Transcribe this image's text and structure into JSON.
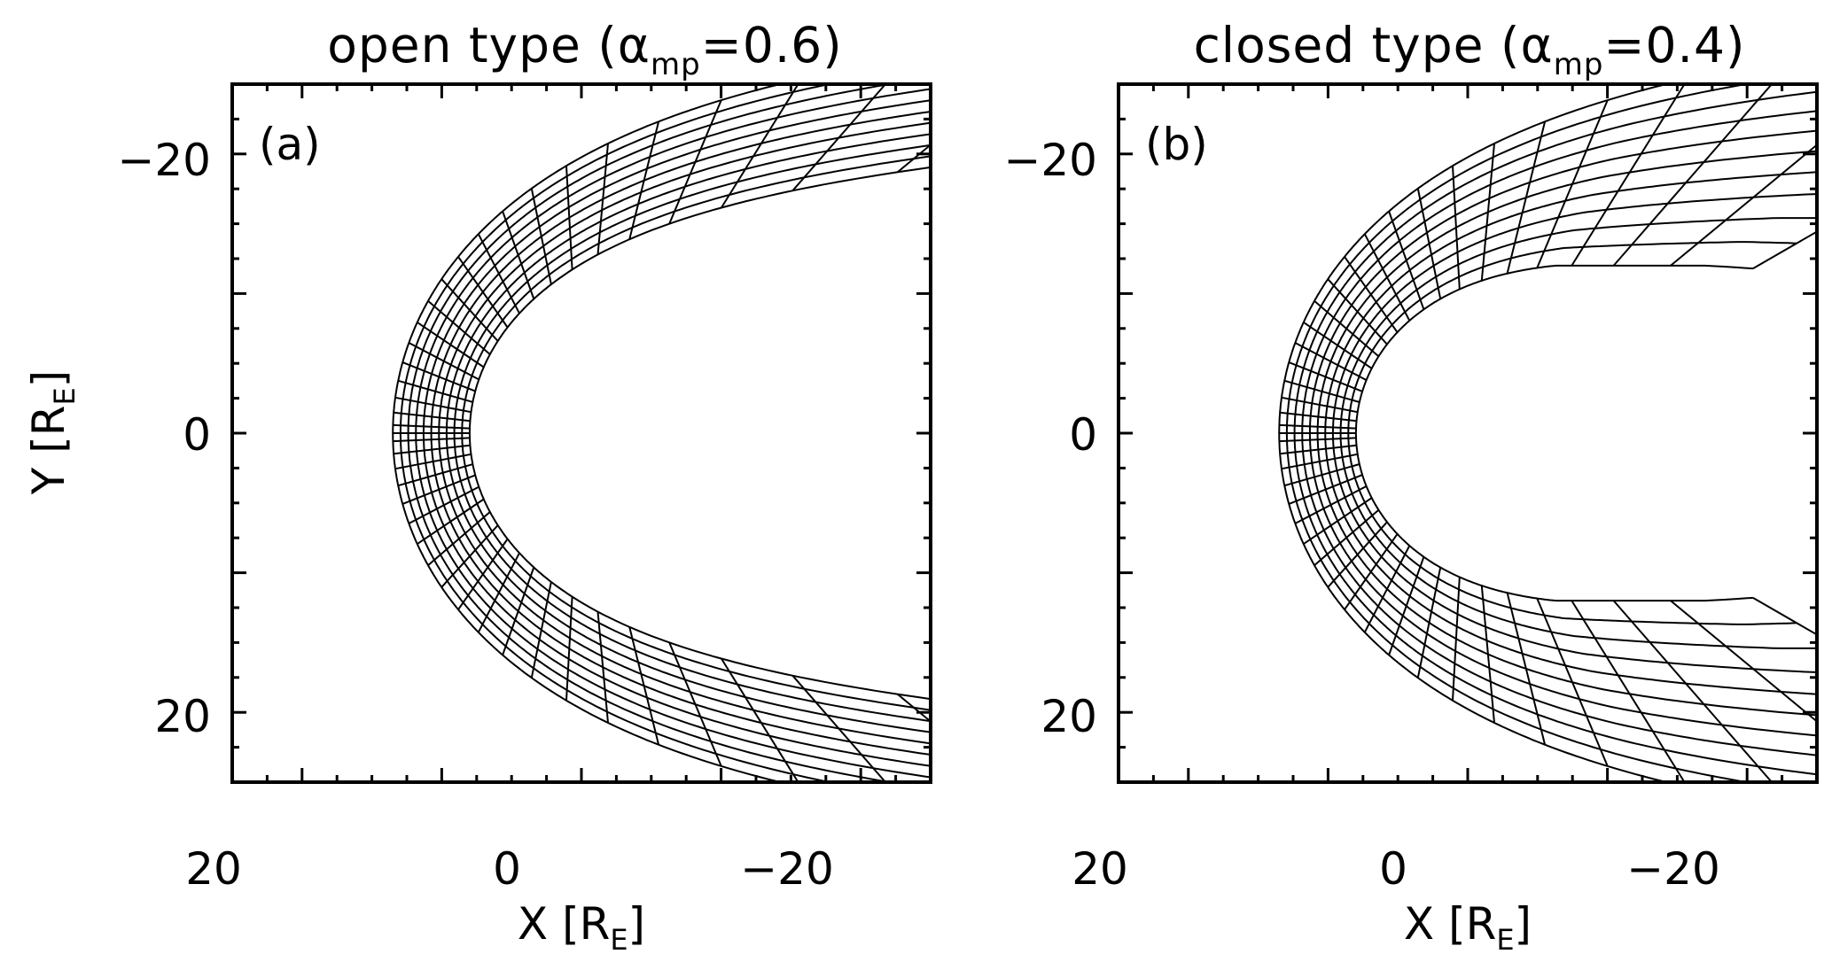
{
  "chart_data": [
    {
      "type": "line",
      "panel_label": "(a)",
      "title": {
        "prefix": "open type (",
        "alpha": "α",
        "sub": "mp",
        "suffix": "=0.6)"
      },
      "xlabel": {
        "main": "X [R",
        "sub": "E",
        "close": "]"
      },
      "ylabel": {
        "main": "Y [R",
        "sub": "E",
        "close": "]"
      },
      "xlim": [
        25,
        -25
      ],
      "ylim": [
        -25,
        25
      ],
      "xticks": [
        20,
        0,
        -20
      ],
      "xtick_labels": [
        "20",
        "0",
        "−20"
      ],
      "yticks": [
        -20,
        0,
        20
      ],
      "ytick_labels": [
        "−20",
        "0",
        "20"
      ],
      "grid": {
        "inner_boundary": {
          "r0": 8.0,
          "alpha": 0.6
        },
        "outer_boundary": {
          "r0": 13.5,
          "alpha": 0.55
        },
        "radial_lines": 11,
        "angular_lines_half": 21,
        "theta_max_deg": 150
      }
    },
    {
      "type": "line",
      "panel_label": "(b)",
      "title": {
        "prefix": "closed type (",
        "alpha": "α",
        "sub": "mp",
        "suffix": "=0.4)"
      },
      "xlabel": {
        "main": "X [R",
        "sub": "E",
        "close": "]"
      },
      "xlim": [
        25,
        -25
      ],
      "ylim": [
        -25,
        25
      ],
      "xticks": [
        20,
        0,
        -20
      ],
      "xtick_labels": [
        "20",
        "0",
        "−20"
      ],
      "yticks": [
        -20,
        0,
        20
      ],
      "ytick_labels": [
        "−20",
        "0",
        "20"
      ],
      "grid": {
        "inner_boundary": {
          "r0": 8.0,
          "alpha": 0.4,
          "tail_half_width": 12
        },
        "outer_boundary": {
          "r0": 13.5,
          "alpha": 0.55
        },
        "radial_lines": 11,
        "angular_lines_half": 21,
        "theta_max_deg": 150
      }
    }
  ]
}
